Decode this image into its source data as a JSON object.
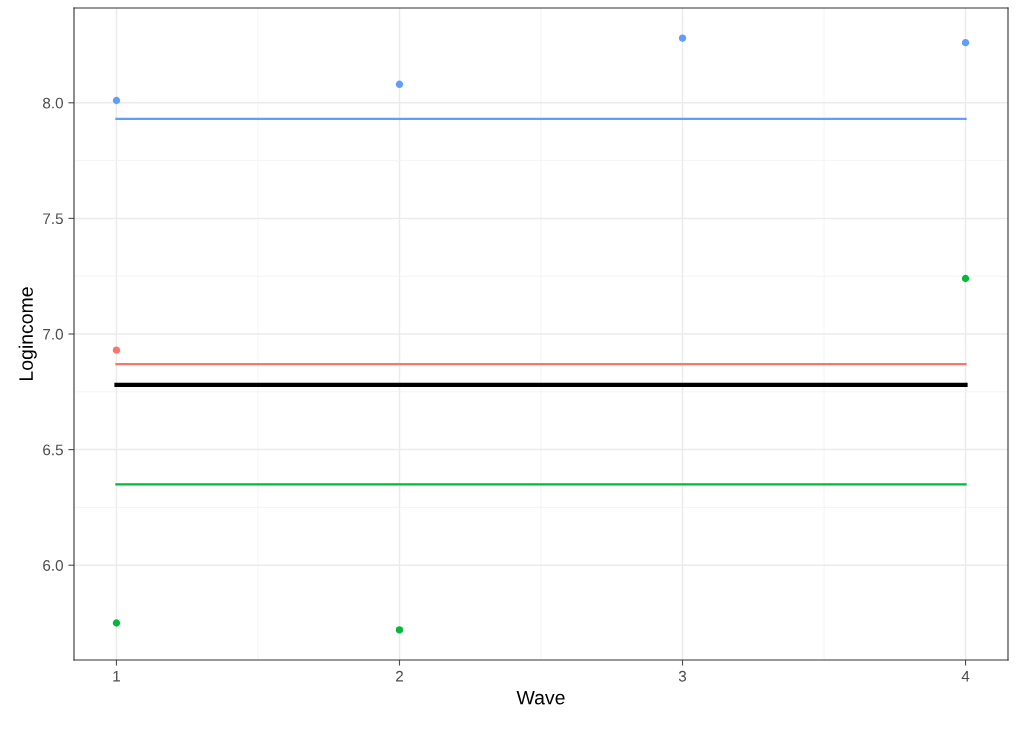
{
  "chart_data": {
    "type": "scatter",
    "xlabel": "Wave",
    "ylabel": "Logincome",
    "xlim": [
      0.85,
      4.15
    ],
    "xticks": [
      1,
      2,
      3,
      4
    ],
    "ylim": [
      5.59,
      8.41
    ],
    "yticks": [
      {
        "value": 6.0,
        "label": "6.0"
      },
      6.5,
      {
        "value": 7.0,
        "label": "7.0"
      },
      7.5,
      {
        "value": 8.0,
        "label": "8.0"
      }
    ],
    "grid": true,
    "series": [
      {
        "color": "#619cff",
        "marker": "circle",
        "x": [
          1,
          2,
          3,
          4
        ],
        "values": [
          8.01,
          8.08,
          8.28,
          8.26
        ]
      },
      {
        "color": "#f8766d",
        "marker": "circle",
        "x": [
          1
        ],
        "values": [
          6.93
        ]
      },
      {
        "color": "#00ba38",
        "marker": "circle",
        "x": [
          1,
          2,
          4
        ],
        "values": [
          5.75,
          5.72,
          7.24
        ]
      },
      {
        "type": "line",
        "color": "#619cff",
        "x": [
          1,
          4
        ],
        "values": [
          7.93,
          7.93
        ]
      },
      {
        "type": "line",
        "color": "#f8766d",
        "x": [
          1,
          4
        ],
        "values": [
          6.87,
          6.87
        ]
      },
      {
        "type": "line",
        "color": "#000000",
        "x": [
          1,
          4
        ],
        "values": [
          6.78,
          6.78
        ]
      },
      {
        "type": "line",
        "color": "#00ba38",
        "x": [
          1,
          4
        ],
        "values": [
          6.35,
          6.35
        ]
      }
    ]
  }
}
